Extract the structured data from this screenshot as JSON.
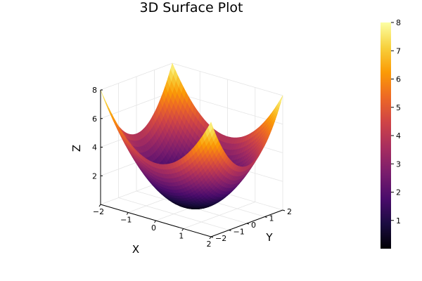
{
  "chart_data": {
    "type": "surface",
    "title": "3D Surface Plot",
    "xlabel": "X",
    "ylabel": "Y",
    "zlabel": "Z",
    "function": "z = x^2 + y^2",
    "x_range": [
      -2,
      2
    ],
    "y_range": [
      -2,
      2
    ],
    "z_range": [
      0,
      8
    ],
    "x_ticks": [
      -2,
      -1,
      0,
      1,
      2
    ],
    "y_ticks": [
      -2,
      -1,
      0,
      1,
      2
    ],
    "z_ticks": [
      2,
      4,
      6,
      8
    ],
    "x_tick_labels": [
      "−2",
      "−1",
      "0",
      "1",
      "2"
    ],
    "y_tick_labels": [
      "−2",
      "−1",
      "0",
      "1",
      "2"
    ],
    "z_tick_labels": [
      "2",
      "4",
      "6",
      "8"
    ],
    "colorbar_ticks": [
      1,
      2,
      3,
      4,
      5,
      6,
      7,
      8
    ],
    "colorbar_tick_labels": [
      "1",
      "2",
      "3",
      "4",
      "5",
      "6",
      "7",
      "8"
    ],
    "colormap": "inferno",
    "colormap_stops": [
      "#000004",
      "#1b0c41",
      "#4a0c6b",
      "#781c6d",
      "#a52c60",
      "#cf4446",
      "#ed6925",
      "#fb9b06",
      "#f7d13d",
      "#fcffa4"
    ],
    "grid": true,
    "legend": "colorbar right"
  }
}
